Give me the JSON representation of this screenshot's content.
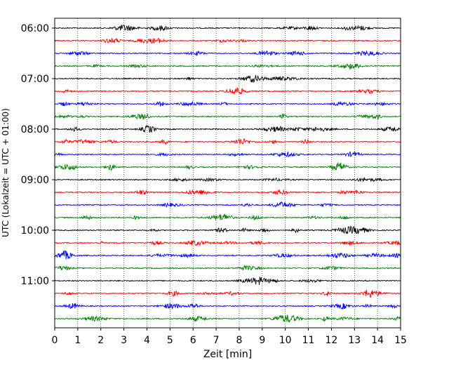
{
  "chart_data": {
    "type": "line",
    "title": "",
    "xlabel": "Zeit  [min]",
    "ylabel": "UTC (Lokalzeit = UTC + 01:00)",
    "xlim": [
      0,
      15
    ],
    "x_ticks": [
      "0",
      "1",
      "2",
      "3",
      "4",
      "5",
      "6",
      "7",
      "8",
      "9",
      "10",
      "11",
      "12",
      "13",
      "14",
      "15"
    ],
    "y_tick_labels": [
      "06:00",
      "07:00",
      "08:00",
      "09:00",
      "10:00",
      "11:00"
    ],
    "grid": "vertical dotted",
    "trace_interval_min": 15,
    "start_time": "06:00",
    "trace_count": 24,
    "series_colors": [
      "#000000",
      "#ff0000",
      "#0000ff",
      "#008000"
    ],
    "note": "seismogram helicorder: each row is 15 min of ground motion, colours cycle per row"
  }
}
